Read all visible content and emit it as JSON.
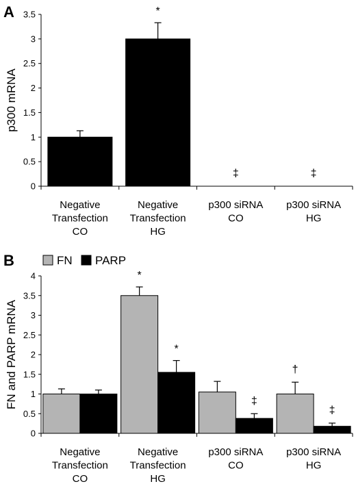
{
  "chart_data": [
    {
      "panel": "A",
      "type": "bar",
      "ylabel": "p300 mRNA",
      "ylim": [
        0,
        3.5
      ],
      "yticks": [
        "0",
        "0.5",
        "1",
        "1.5",
        "2",
        "2.5",
        "3",
        "3.5"
      ],
      "categories": [
        [
          "Negative",
          "Transfection",
          "CO"
        ],
        [
          "Negative",
          "Transfection",
          "HG"
        ],
        [
          "p300 siRNA",
          "CO"
        ],
        [
          "p300 siRNA",
          "HG"
        ]
      ],
      "series": [
        {
          "values": [
            1.0,
            3.0,
            0.0,
            0.0
          ],
          "errors": [
            0.13,
            0.33,
            0.0,
            0.0
          ],
          "annotations": [
            "",
            "*",
            "‡",
            "‡"
          ],
          "color": "#000000"
        }
      ]
    },
    {
      "panel": "B",
      "type": "bar",
      "ylabel": "FN and PARP mRNA",
      "ylim": [
        0,
        4
      ],
      "yticks": [
        "0",
        "0.5",
        "1",
        "1.5",
        "2",
        "2.5",
        "3",
        "3.5",
        "4"
      ],
      "legend": "top-left",
      "categories": [
        [
          "Negative",
          "Transfection",
          "CO"
        ],
        [
          "Negative",
          "Transfection",
          "HG"
        ],
        [
          "p300 siRNA",
          "CO"
        ],
        [
          "p300 siRNA",
          "HG"
        ]
      ],
      "series": [
        {
          "name": "FN",
          "values": [
            1.0,
            3.5,
            1.05,
            1.0
          ],
          "errors": [
            0.13,
            0.22,
            0.27,
            0.3
          ],
          "annotations": [
            "",
            "*",
            "",
            "†"
          ],
          "color": "#b4b4b4"
        },
        {
          "name": "PARP",
          "values": [
            1.0,
            1.55,
            0.38,
            0.18
          ],
          "errors": [
            0.1,
            0.3,
            0.12,
            0.08
          ],
          "annotations": [
            "",
            "*",
            "‡",
            "‡"
          ],
          "color": "#000000"
        }
      ]
    }
  ]
}
